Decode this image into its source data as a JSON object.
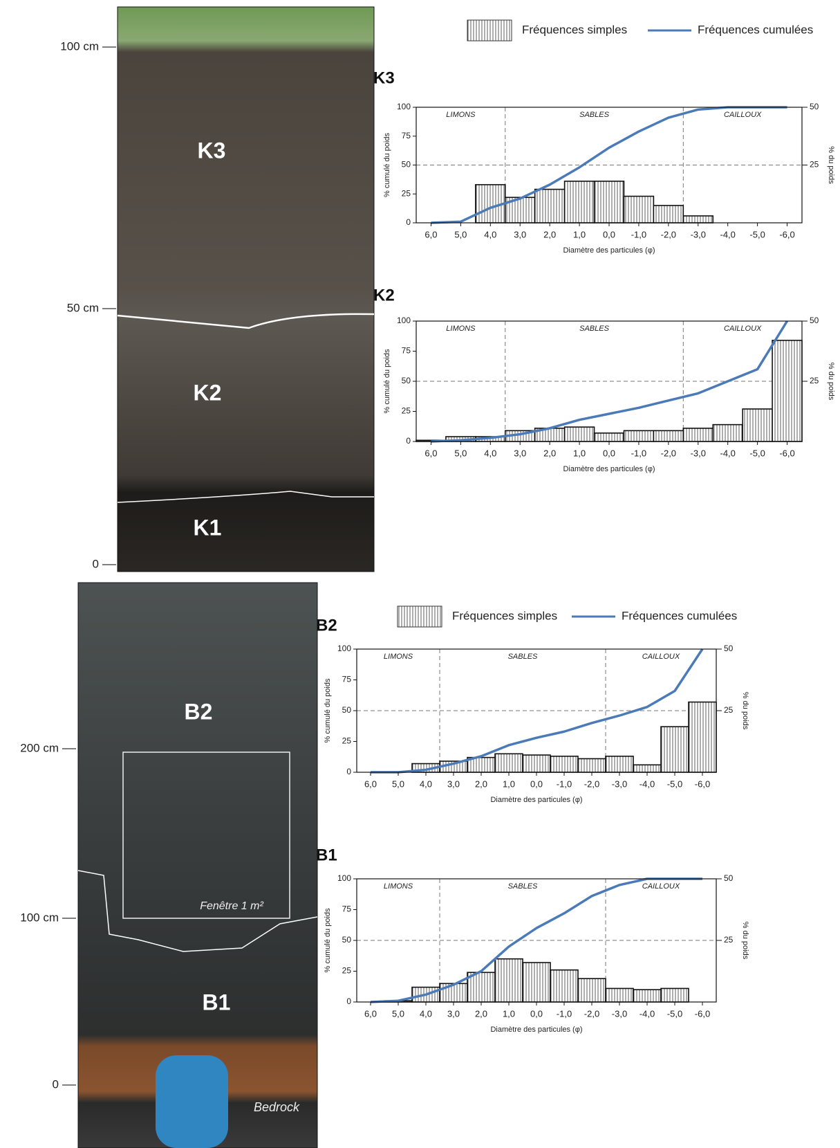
{
  "legends": [
    {
      "simple": "Fréquences simples",
      "cumulative": "Fréquences cumulées"
    },
    {
      "simple": "Fréquences simples",
      "cumulative": "Fréquences cumulées"
    }
  ],
  "photos": [
    {
      "labels": [
        "K3",
        "K2",
        "K1"
      ],
      "depth_scale": [
        "100 cm",
        "50 cm",
        "0"
      ]
    },
    {
      "labels": [
        "B2",
        "B1"
      ],
      "window": "Fenêtre 1 m²",
      "bedrock": "Bedrock",
      "depth_scale": [
        "200 cm",
        "100 cm",
        "0"
      ]
    }
  ],
  "chart_data": [
    {
      "type": "bar",
      "title": "K3",
      "x_label": "Diamètre des particules (φ)",
      "y_label": "% cumulé du poids",
      "y2_label": "% du poids",
      "zones": [
        "LIMONS",
        "SABLES",
        "CAILLOUX"
      ],
      "categories": [
        "6,0",
        "5,0",
        "4,0",
        "3,0",
        "2,0",
        "1,0",
        "0,0",
        "-1,0",
        "-2,0",
        "-3,0",
        "-4,0",
        "-5,0",
        "-6,0"
      ],
      "ylim": [
        0,
        100
      ],
      "yticks": [
        0,
        25,
        50,
        75,
        100
      ],
      "y2lim": [
        0,
        50
      ],
      "y2ticks": [
        25,
        50
      ],
      "reference_line": 50,
      "series": [
        {
          "type": "bar",
          "axis": "y2",
          "color": "#ffffff",
          "values": [
            null,
            null,
            16.5,
            11,
            14.5,
            18,
            18,
            11.5,
            7.5,
            3,
            null,
            null,
            null
          ]
        },
        {
          "type": "line",
          "color": "#4a7ab8",
          "values": [
            0,
            1,
            13,
            21,
            33,
            48,
            65,
            79,
            91,
            98,
            100,
            100,
            100
          ]
        }
      ]
    },
    {
      "type": "bar",
      "title": "K2",
      "x_label": "Diamètre des particules (φ)",
      "y_label": "% cumulé du poids",
      "y2_label": "% du poids",
      "zones": [
        "LIMONS",
        "SABLES",
        "CAILLOUX"
      ],
      "categories": [
        "6,0",
        "5,0",
        "4,0",
        "3,0",
        "2,0",
        "1,0",
        "0,0",
        "-1,0",
        "-2,0",
        "-3,0",
        "-4,0",
        "-5,0",
        "-6,0"
      ],
      "ylim": [
        0,
        100
      ],
      "yticks": [
        0,
        25,
        50,
        75,
        100
      ],
      "y2lim": [
        0,
        50
      ],
      "y2ticks": [
        25,
        50
      ],
      "reference_line": 50,
      "series": [
        {
          "type": "bar",
          "axis": "y2",
          "color": "#ffffff",
          "values": [
            0.5,
            2,
            2,
            4.5,
            5.5,
            6,
            3.5,
            4.5,
            4.5,
            5.5,
            7,
            13.5,
            42
          ]
        },
        {
          "type": "line",
          "color": "#4a7ab8",
          "values": [
            0,
            1,
            3,
            6,
            11,
            18,
            23,
            28,
            34,
            40,
            50,
            60,
            100
          ]
        }
      ]
    },
    {
      "type": "bar",
      "title": "B2",
      "x_label": "Diamètre des particules (φ)",
      "y_label": "% cumulé du poids",
      "y2_label": "% du poids",
      "zones": [
        "LIMONS",
        "SABLES",
        "CAILLOUX"
      ],
      "categories": [
        "6,0",
        "5,0",
        "4,0",
        "3,0",
        "2,0",
        "1,0",
        "0,0",
        "-1,0",
        "-2,0",
        "-3,0",
        "-4,0",
        "-5,0",
        "-6,0"
      ],
      "ylim": [
        0,
        100
      ],
      "yticks": [
        0,
        25,
        50,
        75,
        100
      ],
      "y2lim": [
        0,
        50
      ],
      "y2ticks": [
        25,
        50
      ],
      "reference_line": 50,
      "series": [
        {
          "type": "bar",
          "axis": "y2",
          "color": "#ffffff",
          "values": [
            null,
            null,
            3.5,
            4.5,
            6,
            7.5,
            7,
            6.5,
            5.5,
            6.5,
            3,
            18.5,
            28.5
          ]
        },
        {
          "type": "line",
          "color": "#4a7ab8",
          "values": [
            0,
            0,
            2,
            7,
            13,
            22,
            28,
            33,
            40,
            46,
            53,
            66,
            100
          ]
        }
      ]
    },
    {
      "type": "bar",
      "title": "B1",
      "x_label": "Diamètre des particules (φ)",
      "y_label": "% cumulé du poids",
      "y2_label": "% du poids",
      "zones": [
        "LIMONS",
        "SABLES",
        "CAILLOUX"
      ],
      "categories": [
        "6,0",
        "5,0",
        "4,0",
        "3,0",
        "2,0",
        "1,0",
        "0,0",
        "-1,0",
        "-2,0",
        "-3,0",
        "-4,0",
        "-5,0",
        "-6,0"
      ],
      "ylim": [
        0,
        100
      ],
      "yticks": [
        0,
        25,
        50,
        75,
        100
      ],
      "y2lim": [
        0,
        50
      ],
      "y2ticks": [
        25,
        50
      ],
      "reference_line": 50,
      "series": [
        {
          "type": "bar",
          "axis": "y2",
          "color": "#ffffff",
          "values": [
            null,
            0.5,
            6,
            7.5,
            12,
            17.5,
            16,
            13,
            9.5,
            5.5,
            5,
            5.5,
            null
          ]
        },
        {
          "type": "line",
          "color": "#4a7ab8",
          "values": [
            0,
            1,
            6,
            14,
            25,
            45,
            60,
            72,
            86,
            95,
            100,
            100,
            100
          ]
        }
      ]
    }
  ]
}
